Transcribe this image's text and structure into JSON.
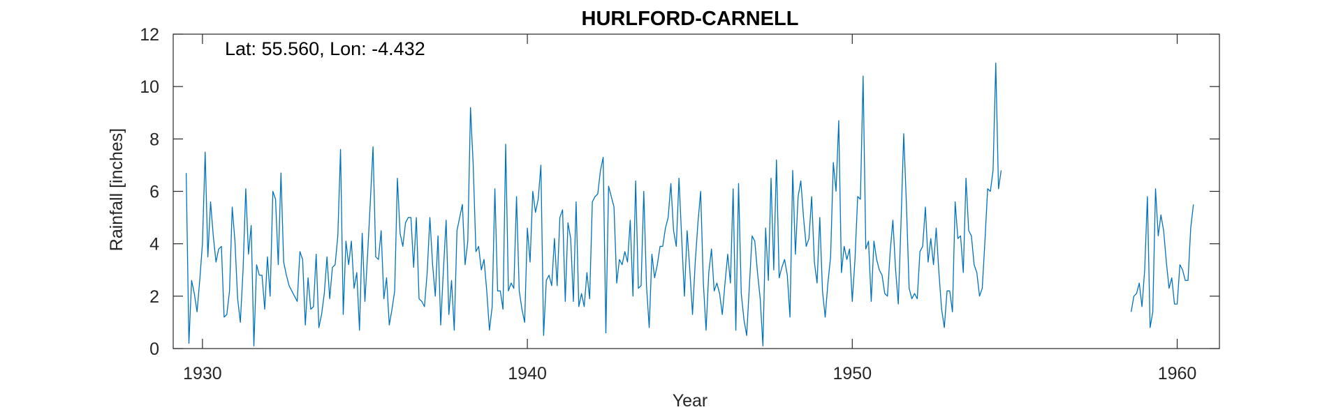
{
  "chart_data": {
    "type": "line",
    "title": "HURLFORD-CARNELL",
    "xlabel": "Year",
    "ylabel": "Rainfall [inches]",
    "annotation": "Lat: 55.560, Lon: -4.432",
    "xlim": [
      1929.1,
      1961.3
    ],
    "ylim": [
      0,
      12
    ],
    "xticks": [
      1930,
      1940,
      1950,
      1960
    ],
    "yticks": [
      0,
      2,
      4,
      6,
      8,
      10,
      12
    ],
    "grid": false,
    "line_color": "#0072BD",
    "series": [
      {
        "segments": [
          {
            "x_start": 1929.5,
            "x_step": 0.083333,
            "values": [
              6.7,
              0.2,
              2.6,
              2.1,
              1.4,
              2.6,
              4.0,
              7.5,
              3.5,
              5.6,
              4.3,
              3.3,
              3.8,
              3.9,
              1.2,
              1.3,
              2.2,
              5.4,
              4.1,
              1.9,
              1.0,
              3.0,
              6.1,
              3.6,
              4.7,
              0.1,
              3.2,
              2.8,
              2.8,
              1.5,
              3.5,
              2.0,
              6.0,
              5.7,
              3.2,
              6.7,
              3.3,
              2.8,
              2.4,
              2.2,
              2.0,
              1.8,
              3.7,
              3.4,
              0.9,
              2.7,
              1.5,
              1.6,
              3.6,
              0.8,
              1.3,
              2.1,
              3.5,
              1.9,
              3.1,
              3.2,
              4.3,
              7.6,
              1.3,
              4.1,
              3.2,
              4.1,
              2.3,
              2.9,
              0.7,
              4.4,
              1.8,
              3.6,
              5.6,
              7.7,
              3.5,
              3.4,
              4.5,
              1.9,
              2.7,
              0.9,
              1.5,
              2.2,
              6.5,
              4.4,
              3.9,
              4.8,
              5.0,
              5.0,
              3.1,
              5.0,
              1.9,
              1.8,
              1.6,
              2.9,
              5.0,
              3.2,
              2.0,
              4.3,
              0.9,
              3.0,
              4.9,
              1.3,
              2.6,
              0.7,
              4.5,
              5.0,
              5.5,
              3.2,
              4.1,
              9.2,
              7.0,
              3.7,
              3.9,
              3.0,
              3.4,
              2.2,
              0.7,
              1.6,
              6.1,
              2.2,
              2.2,
              1.5,
              7.8,
              2.2,
              2.5,
              2.3,
              5.8,
              2.2,
              1.5,
              1.0,
              4.6,
              3.3,
              6.0,
              5.2,
              5.7,
              7.0,
              0.5,
              2.6,
              2.8,
              2.4,
              4.2,
              2.4,
              5.0,
              5.3,
              1.8,
              4.8,
              4.2,
              1.8,
              5.6,
              1.6,
              2.1,
              1.6,
              2.9,
              1.9,
              5.6,
              5.8,
              5.9,
              6.8,
              7.3,
              0.6,
              6.2,
              5.8,
              5.4,
              2.5,
              3.4,
              3.2,
              3.7,
              3.3,
              4.9,
              2.0,
              6.4,
              2.3,
              2.4,
              6.0,
              2.4,
              0.8,
              3.6,
              2.7,
              3.2,
              3.9,
              3.9,
              4.6,
              5.0,
              6.3,
              4.5,
              3.9,
              6.5,
              4.2,
              2.0,
              4.5,
              3.0,
              1.3,
              3.3,
              4.8,
              6.0,
              2.5,
              0.7,
              2.9,
              3.8,
              2.2,
              2.5,
              2.1,
              1.3,
              2.5,
              3.6,
              2.5,
              6.1,
              0.7,
              6.3,
              2.1,
              1.1,
              0.5,
              2.4,
              4.3,
              4.1,
              2.9,
              1.9,
              0.1,
              4.6,
              2.6,
              6.5,
              3.0,
              7.2,
              2.7,
              3.1,
              3.4,
              2.8,
              1.2,
              6.8,
              3.6,
              5.8,
              6.4,
              5.0,
              3.9,
              4.2,
              5.8,
              3.3,
              2.5,
              5.0,
              2.2,
              1.2,
              2.5,
              3.5,
              7.1,
              6.0,
              8.7,
              2.9,
              3.9,
              3.4,
              3.8,
              1.8,
              3.4,
              5.8,
              5.7,
              10.4,
              3.8,
              4.1,
              1.8,
              4.1,
              3.4,
              3.0,
              2.8,
              2.1,
              2.0,
              3.7,
              4.9,
              3.0,
              1.7,
              4.8,
              8.2,
              5.5,
              2.3,
              1.9,
              2.1,
              1.9,
              3.7,
              3.9,
              5.4,
              3.3,
              4.2,
              3.2,
              4.6,
              2.9,
              1.5,
              0.8,
              2.2,
              2.2,
              1.4,
              5.6,
              4.2,
              4.3,
              2.9,
              6.5,
              4.5,
              4.3,
              3.2,
              2.9,
              2.0,
              2.3,
              4.1,
              6.1,
              6.0,
              6.8,
              10.9,
              6.1,
              6.8
            ]
          },
          {
            "x_start": 1958.583,
            "x_step": 0.083333,
            "values": [
              1.4,
              2.0,
              2.1,
              2.5,
              1.6,
              3.0,
              5.8,
              0.8,
              1.4,
              6.1,
              4.3,
              5.1,
              4.5,
              3.3,
              2.3,
              2.7,
              1.7,
              1.7,
              3.2,
              3.0,
              2.6,
              2.6,
              4.6,
              5.5
            ]
          }
        ]
      }
    ]
  }
}
